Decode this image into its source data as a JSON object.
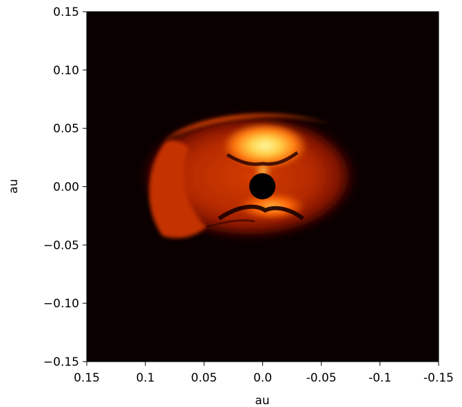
{
  "chart_data": {
    "type": "heatmap",
    "title": "",
    "xlabel": "au",
    "ylabel": "au",
    "xlim": [
      0.15,
      -0.15
    ],
    "ylim": [
      -0.15,
      0.15
    ],
    "x_inverted": true,
    "xticks": [
      0.15,
      0.1,
      0.05,
      0.0,
      -0.05,
      -0.1,
      -0.15
    ],
    "xtick_labels": [
      "0.15",
      "0.1",
      "0.05",
      "0.0",
      "-0.05",
      "-0.1",
      "-0.15"
    ],
    "yticks": [
      0.15,
      0.1,
      0.05,
      0.0,
      -0.05,
      -0.1,
      -0.15
    ],
    "ytick_labels": [
      "0.15",
      "0.10",
      "0.05",
      "0.00",
      "−0.05",
      "−0.10",
      "−0.15"
    ],
    "colormap": "hot",
    "colors": {
      "background": "#0a0000",
      "disk_outer": "#7a0f00",
      "disk_mid": "#d23a00",
      "disk_bright": "#ff8a0d",
      "disk_peak": "#ffe36a",
      "central_object": "#000000"
    },
    "features": {
      "central_object": {
        "x": 0.0,
        "y": 0.0,
        "radius": 0.011
      },
      "disk_extent": {
        "x_min": -0.085,
        "x_max": 0.1,
        "y_min": -0.045,
        "y_max": 0.063
      },
      "brightest_region": {
        "x": -0.005,
        "y": 0.033
      }
    }
  }
}
